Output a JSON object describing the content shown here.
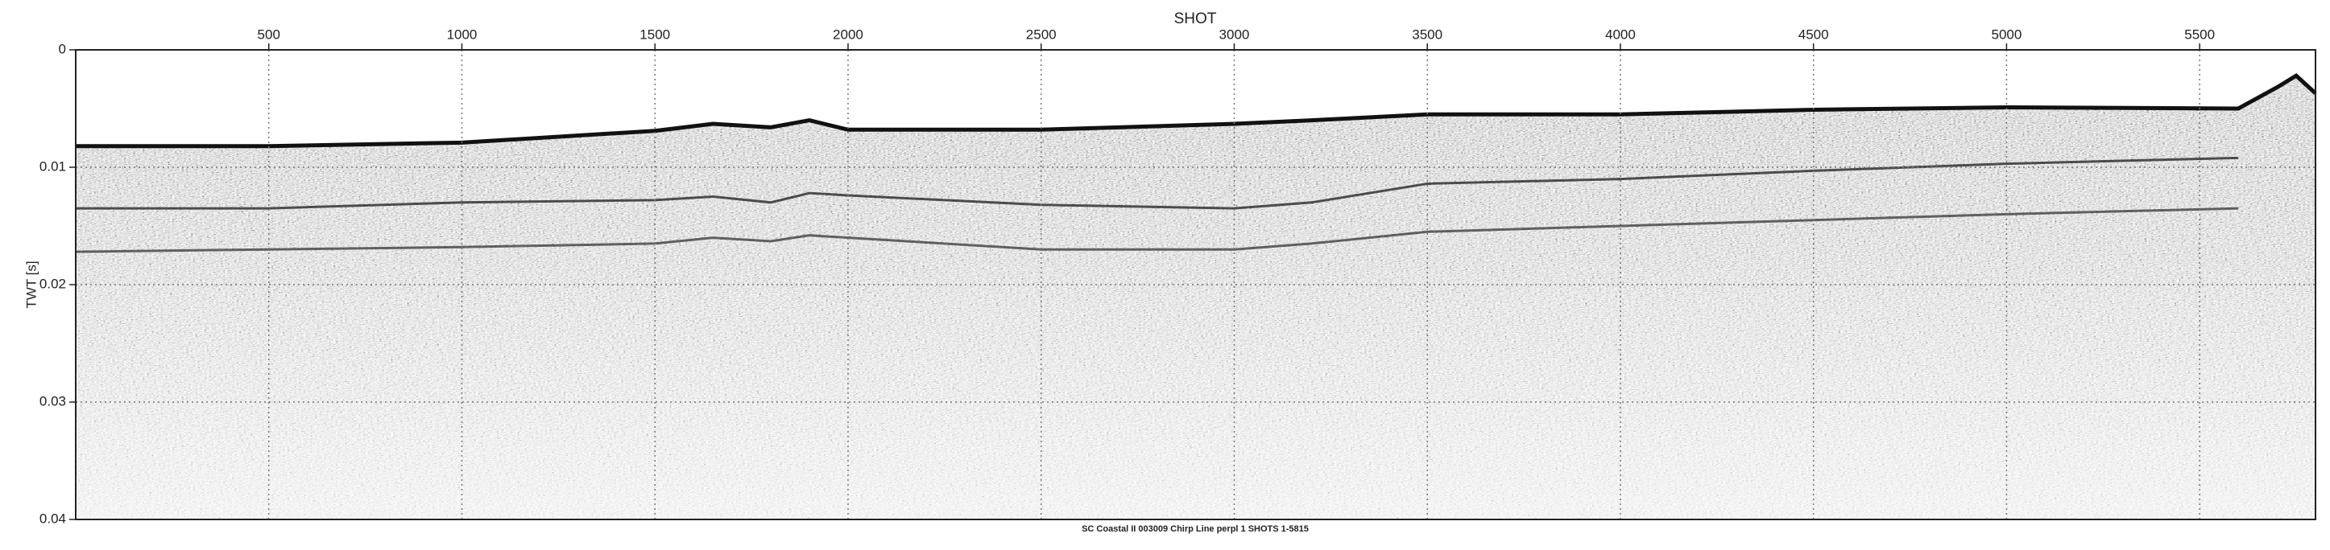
{
  "chart_data": {
    "type": "seismic",
    "xlabel": "SHOT",
    "ylabel": "TWT [s]",
    "caption": "SC Coastal II 003009 Chirp Line perpl 1 SHOTS 1-5815",
    "xlim": [
      0,
      5800
    ],
    "xticks": [
      500,
      1000,
      1500,
      2000,
      2500,
      3000,
      3500,
      4000,
      4500,
      5000,
      5500
    ],
    "ylim": [
      0,
      0.04
    ],
    "yticks": [
      0,
      0.01,
      0.02,
      0.03,
      0.04
    ],
    "y_inverted": true,
    "grid": true,
    "x": [
      0,
      500,
      1000,
      1500,
      1650,
      1800,
      1900,
      2000,
      2500,
      3000,
      3200,
      3500,
      4000,
      4500,
      5000,
      5600,
      5700,
      5750,
      5800
    ],
    "series": [
      {
        "color": "#111111",
        "values": [
          0.0082,
          0.0082,
          0.0079,
          0.0069,
          0.0063,
          0.0066,
          0.006,
          0.0068,
          0.0068,
          0.0063,
          0.006,
          0.0055,
          0.0055,
          0.0051,
          0.0049,
          0.005,
          0.0032,
          0.0022,
          0.0037
        ]
      },
      {
        "color": "#1a1a1a",
        "values": [
          0.0135,
          0.0135,
          0.013,
          0.0128,
          0.0125,
          0.013,
          0.0122,
          0.0124,
          0.0132,
          0.0135,
          0.013,
          0.0114,
          0.011,
          0.0103,
          0.0097,
          0.0092,
          null,
          null,
          null
        ]
      },
      {
        "color": "#333333",
        "values": [
          0.0172,
          0.017,
          0.0168,
          0.0165,
          0.016,
          0.0163,
          0.0158,
          0.016,
          0.017,
          0.017,
          0.0165,
          0.0155,
          0.015,
          0.0145,
          0.014,
          0.0135,
          null,
          null,
          null
        ]
      }
    ]
  }
}
